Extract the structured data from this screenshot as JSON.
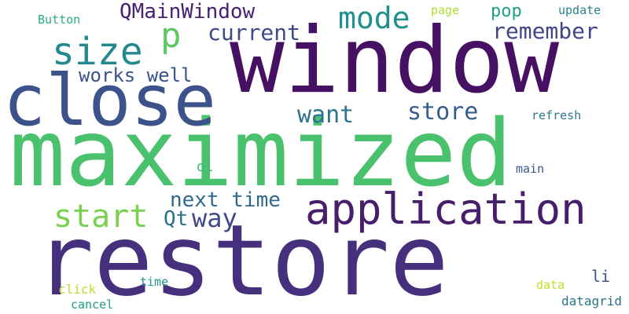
{
  "words": [
    {
      "text": "restore",
      "color": "#46307e"
    },
    {
      "text": "maximized",
      "color": "#49c16d"
    },
    {
      "text": "window",
      "color": "#471163"
    },
    {
      "text": "close",
      "color": "#3b528b"
    },
    {
      "text": "application",
      "color": "#461e6b"
    },
    {
      "text": "size",
      "color": "#23898e"
    },
    {
      "text": "mode",
      "color": "#21908d"
    },
    {
      "text": "QMainWindow",
      "color": "#482173"
    },
    {
      "text": "p",
      "color": "#5ec962"
    },
    {
      "text": "current",
      "color": "#3e4a89"
    },
    {
      "text": "remember",
      "color": "#414487"
    },
    {
      "text": "works well",
      "color": "#3b528b"
    },
    {
      "text": "want",
      "color": "#2c728e"
    },
    {
      "text": "store",
      "color": "#365d8d"
    },
    {
      "text": "start",
      "color": "#7ad151"
    },
    {
      "text": "next time",
      "color": "#31688e"
    },
    {
      "text": "way",
      "color": "#3e4989"
    },
    {
      "text": "Qt",
      "color": "#2d708e"
    },
    {
      "text": "pop",
      "color": "#1fa187"
    },
    {
      "text": "Button",
      "color": "#29af7f"
    },
    {
      "text": "page",
      "color": "#addc30"
    },
    {
      "text": "update",
      "color": "#26828e"
    },
    {
      "text": "refresh",
      "color": "#2a788e"
    },
    {
      "text": "ol",
      "color": "#3fbc73"
    },
    {
      "text": "main",
      "color": "#38598c"
    },
    {
      "text": "li",
      "color": "#3d4e8a"
    },
    {
      "text": "click",
      "color": "#b8de29"
    },
    {
      "text": "time",
      "color": "#1f948c"
    },
    {
      "text": "data",
      "color": "#c2df23"
    },
    {
      "text": "cancel",
      "color": "#1e9c89"
    },
    {
      "text": "datagrid",
      "color": "#2c738e"
    }
  ]
}
